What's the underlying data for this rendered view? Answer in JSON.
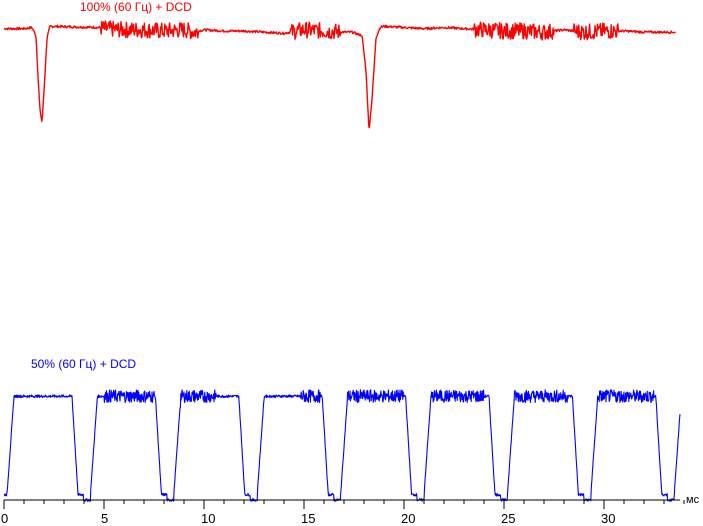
{
  "chart_data": {
    "type": "line",
    "x_unit": "мс",
    "xlim": [
      0,
      35
    ],
    "x_ticks": [
      "0",
      "5",
      "10",
      "15",
      "20",
      "25",
      "30"
    ],
    "ylim": [
      0,
      100
    ],
    "grid": false,
    "series": [
      {
        "name": "100% (60 Гц) + DCD",
        "color": "#ff0000",
        "x": [
          0,
          1.0,
          1.4,
          1.6,
          1.7,
          1.8,
          1.9,
          2.0,
          2.15,
          2.3,
          4.8,
          5.0,
          6.0,
          7.0,
          8.0,
          9.0,
          9.5,
          10.0,
          11.0,
          12.0,
          13.0,
          14.0,
          14.3,
          15.0,
          16.0,
          17.0,
          17.4,
          17.9,
          18.1,
          18.25,
          18.4,
          18.6,
          18.8,
          19.0,
          20.0,
          21.0,
          22.0,
          23.0,
          24.0,
          25.0,
          26.0,
          27.0,
          28.0,
          29.0,
          30.0,
          31.0,
          32.0,
          33.0,
          33.6
        ],
        "y": [
          96,
          96,
          97,
          90,
          55,
          26,
          15,
          42,
          88,
          98,
          97,
          96,
          95,
          95,
          94,
          95,
          93,
          95,
          94,
          94,
          93,
          92,
          93,
          95,
          94,
          93,
          93,
          90,
          60,
          8,
          35,
          88,
          97,
          98,
          97,
          96,
          97,
          96,
          95,
          94,
          94,
          93,
          95,
          93,
          94,
          94,
          93,
          93,
          93
        ],
        "noise_segments": [
          [
            4.8,
            9.7
          ],
          [
            14.3,
            16.8
          ],
          [
            23.5,
            27.5
          ],
          [
            28.5,
            30.7
          ]
        ]
      },
      {
        "name": "50% (60 Гц) + DCD",
        "color": "#0000ff",
        "period_ms": 4.17,
        "first_rise_ms": 0.15,
        "high_ms": 3.25,
        "high_level": 97,
        "low_level": 5,
        "dip_level": 0,
        "x_end": 33.8,
        "noise_segments": [
          [
            5.0,
            7.5
          ],
          [
            8.8,
            10.6
          ],
          [
            14.8,
            15.8
          ],
          [
            17.0,
            20.0
          ],
          [
            21.2,
            24.0
          ],
          [
            25.5,
            28.2
          ],
          [
            29.5,
            32.5
          ]
        ]
      }
    ]
  }
}
